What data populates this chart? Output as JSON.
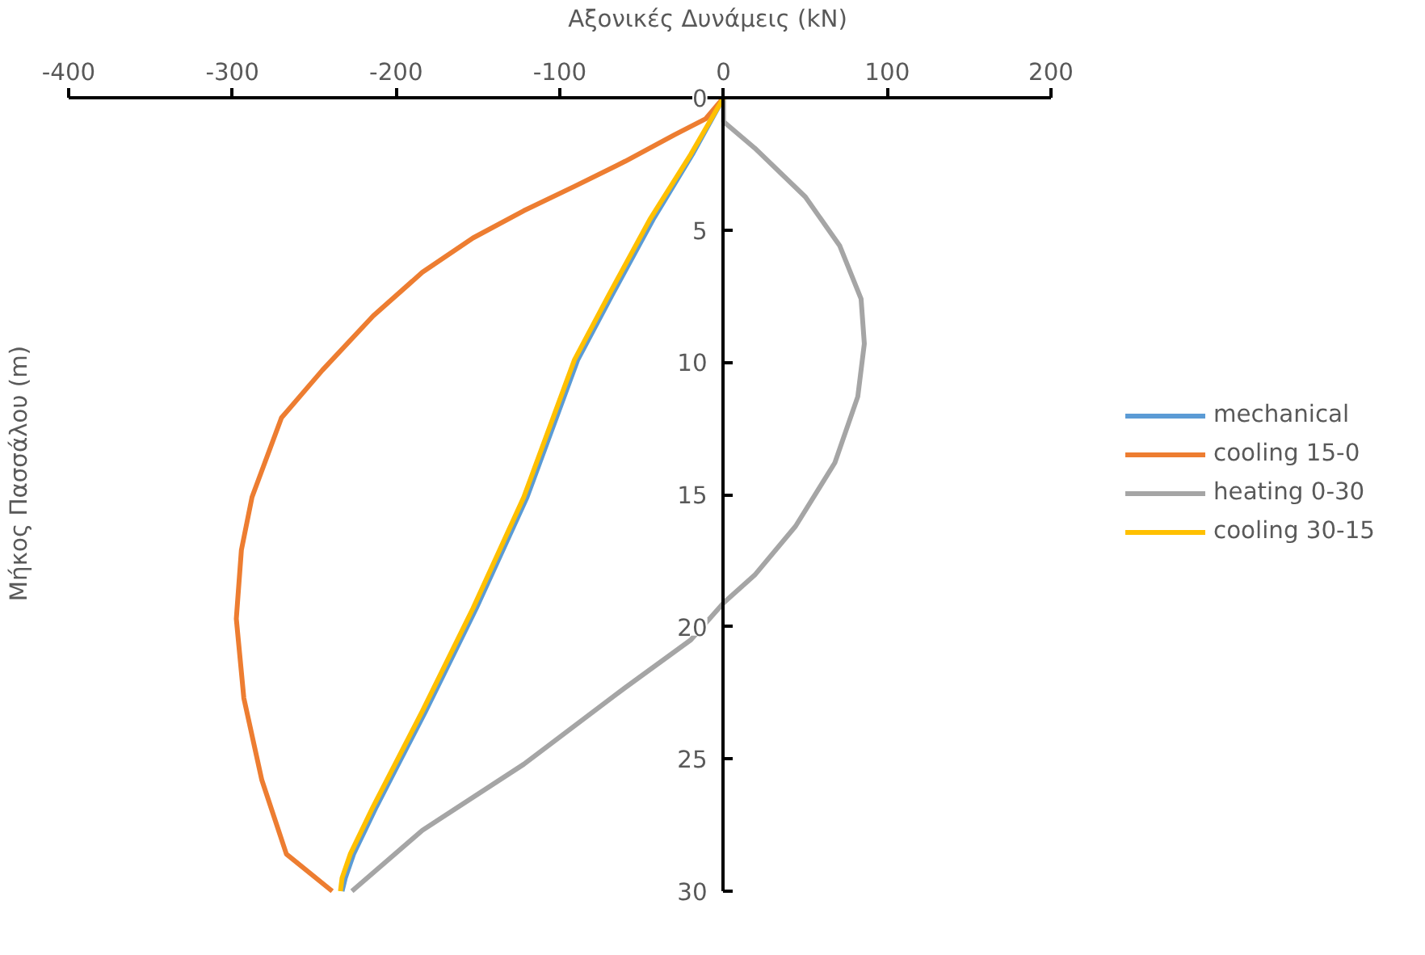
{
  "chart_data": {
    "type": "line",
    "xlabel": "Αξονικές Δυνάμεις (kN)",
    "ylabel": "Μήκος Πασσάλου (m)",
    "xlim": [
      -400,
      200
    ],
    "xticks": [
      -400,
      -300,
      -200,
      -100,
      0,
      100,
      200
    ],
    "ylim": [
      30,
      0
    ],
    "yticks": [
      0,
      5,
      10,
      15,
      20,
      25,
      30
    ],
    "grid": false,
    "legend": "right",
    "line_style": "solid",
    "marker": "none",
    "series": [
      {
        "name": "mechanical",
        "color": "#5b9bd5",
        "x": [
          0,
          -19,
          -43,
          -68,
          -89,
          -120,
          -151,
          -182,
          -212,
          -226,
          -231,
          -233
        ],
        "values": [
          0,
          2.14,
          4.6,
          7.45,
          9.9,
          15.1,
          19.3,
          23.2,
          26.8,
          28.6,
          29.5,
          30
        ]
      },
      {
        "name": "cooling 15-0",
        "color": "#ed7d31",
        "x": [
          0,
          -11,
          -30,
          -60,
          -91,
          -122,
          -153,
          -184,
          -214,
          -245,
          -270,
          -288,
          -294.5,
          -297.6,
          -293,
          -282,
          -267,
          -239
        ],
        "values": [
          0,
          0.8,
          1.4,
          2.4,
          3.35,
          4.27,
          5.3,
          6.6,
          8.25,
          10.3,
          12.1,
          15.1,
          17.1,
          19.7,
          22.7,
          25.8,
          28.6,
          30
        ]
      },
      {
        "name": "heating 0-30",
        "color": "#a5a5a5",
        "x": [
          0,
          0,
          19,
          50,
          71,
          84,
          86,
          82,
          68,
          44,
          19,
          0,
          -20,
          -60,
          -122,
          -184,
          -227
        ],
        "values": [
          0,
          0.9,
          1.9,
          3.75,
          5.6,
          7.6,
          9.3,
          11.3,
          13.8,
          16.2,
          18.05,
          19.1,
          20.5,
          22.3,
          25.2,
          27.7,
          30
        ]
      },
      {
        "name": "cooling 30-15",
        "color": "#ffc000",
        "x": [
          0,
          -20,
          -45,
          -70,
          -91,
          -122,
          -153,
          -184,
          -214,
          -228,
          -233,
          -234
        ],
        "values": [
          0,
          2.14,
          4.6,
          7.45,
          9.9,
          15.1,
          19.3,
          23.2,
          26.8,
          28.6,
          29.5,
          30
        ]
      }
    ]
  }
}
